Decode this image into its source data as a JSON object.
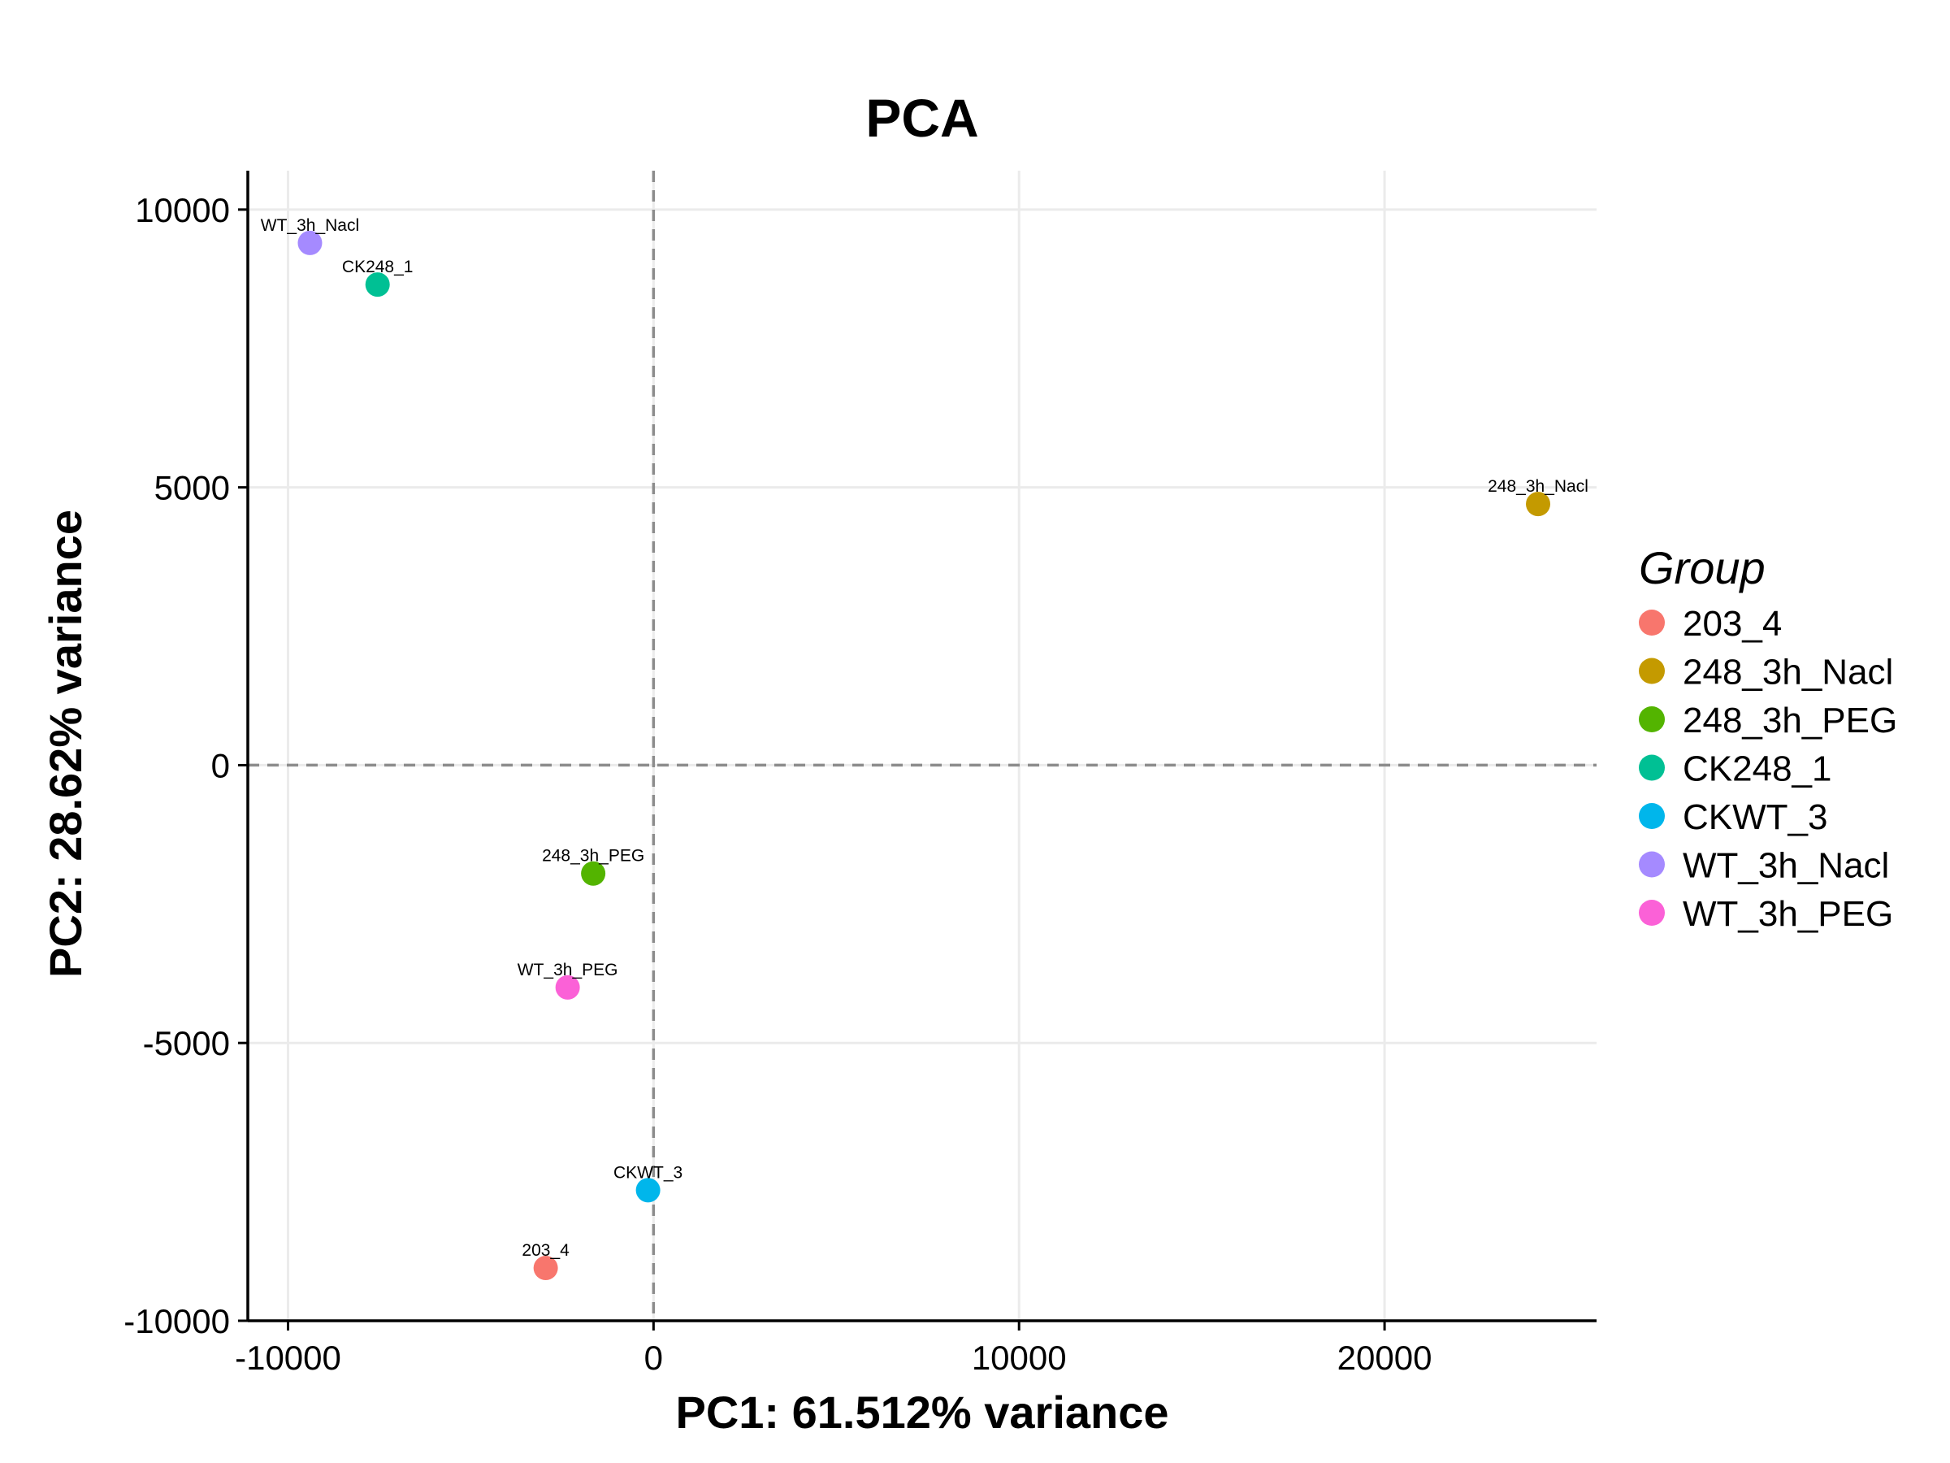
{
  "chart_data": {
    "type": "scatter",
    "title": "PCA",
    "xlabel": "PC1: 61.512% variance",
    "ylabel": "PC2: 28.62% variance",
    "xlim": [
      -11100,
      25800
    ],
    "ylim": [
      -10000,
      10700
    ],
    "xticks": [
      -10000,
      0,
      10000,
      20000
    ],
    "xtick_labels": [
      "-10000",
      "0",
      "10000",
      "20000"
    ],
    "yticks": [
      -10000,
      -5000,
      0,
      5000,
      10000
    ],
    "ytick_labels": [
      "-10000",
      "-5000",
      "0",
      "5000",
      "10000"
    ],
    "grid": true,
    "reference_lines": {
      "x": 0,
      "y": 0,
      "style": "dashed"
    },
    "legend": {
      "title": "Group",
      "placement": "right"
    },
    "series": [
      {
        "name": "203_4",
        "color": "#F8766D",
        "x": -2950,
        "y": -9050,
        "label": "203_4"
      },
      {
        "name": "248_3h_Nacl",
        "color": "#C49A00",
        "x": 24200,
        "y": 4700,
        "label": "248_3h_Nacl"
      },
      {
        "name": "248_3h_PEG",
        "color": "#53B400",
        "x": -1650,
        "y": -1950,
        "label": "248_3h_PEG"
      },
      {
        "name": "CK248_1",
        "color": "#00C094",
        "x": -7550,
        "y": 8650,
        "label": "CK248_1"
      },
      {
        "name": "CKWT_3",
        "color": "#00B6EB",
        "x": -150,
        "y": -7650,
        "label": "CKWT_3"
      },
      {
        "name": "WT_3h_Nacl",
        "color": "#A58AFF",
        "x": -9400,
        "y": 9400,
        "label": "WT_3h_Nacl"
      },
      {
        "name": "WT_3h_PEG",
        "color": "#FB61D7",
        "x": -2350,
        "y": -4000,
        "label": "WT_3h_PEG"
      }
    ]
  }
}
